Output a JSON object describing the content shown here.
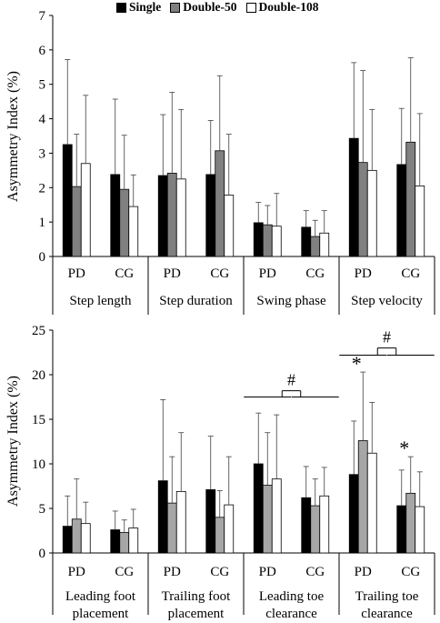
{
  "legend": {
    "series": [
      {
        "label": "Single",
        "color": "#000000"
      },
      {
        "label": "Double-50",
        "color": "#808080"
      },
      {
        "label": "Double-108",
        "color": "#ffffff"
      }
    ]
  },
  "chart_data": [
    {
      "type": "bar",
      "ylabel": "Asymmetry Index (%)",
      "ylim": [
        0,
        7
      ],
      "yticks": [
        0,
        1,
        2,
        3,
        4,
        5,
        6,
        7
      ],
      "error_bars": "upper only",
      "groups": [
        {
          "label": "Step length",
          "subgroups": [
            "PD",
            "CG"
          ]
        },
        {
          "label": "Step duration",
          "subgroups": [
            "PD",
            "CG"
          ]
        },
        {
          "label": "Swing phase",
          "subgroups": [
            "PD",
            "CG"
          ]
        },
        {
          "label": "Step velocity",
          "subgroups": [
            "PD",
            "CG"
          ]
        }
      ],
      "series": [
        {
          "name": "Single",
          "color": "#000000",
          "values": [
            3.25,
            2.38,
            2.35,
            2.38,
            0.98,
            0.85,
            3.43,
            2.67
          ],
          "err_upper": [
            5.72,
            4.57,
            4.12,
            3.95,
            1.57,
            1.33,
            5.63,
            4.3
          ]
        },
        {
          "name": "Double-50",
          "color": "#808080",
          "values": [
            2.03,
            1.95,
            2.42,
            3.07,
            0.92,
            0.58,
            2.73,
            3.32
          ],
          "err_upper": [
            3.55,
            3.52,
            4.77,
            5.25,
            1.48,
            1.05,
            5.4,
            5.77
          ]
        },
        {
          "name": "Double-108",
          "color": "#ffffff",
          "values": [
            2.7,
            1.45,
            2.25,
            1.78,
            0.88,
            0.68,
            2.5,
            2.05
          ],
          "err_upper": [
            4.68,
            2.37,
            4.27,
            3.55,
            1.83,
            1.33,
            4.27,
            4.15
          ]
        }
      ],
      "annotations": []
    },
    {
      "type": "bar",
      "ylabel": "Asymmetry Index (%)",
      "ylim": [
        0,
        25
      ],
      "yticks": [
        0,
        5,
        10,
        15,
        20,
        25
      ],
      "error_bars": "upper only",
      "groups": [
        {
          "label": "Leading foot placement",
          "subgroups": [
            "PD",
            "CG"
          ]
        },
        {
          "label": "Trailing foot placement",
          "subgroups": [
            "PD",
            "CG"
          ]
        },
        {
          "label": "Leading toe clearance",
          "subgroups": [
            "PD",
            "CG"
          ]
        },
        {
          "label": "Trailing toe clearance",
          "subgroups": [
            "PD",
            "CG"
          ]
        }
      ],
      "series": [
        {
          "name": "Single",
          "color": "#000000",
          "values": [
            3.0,
            2.6,
            8.1,
            7.1,
            10.0,
            6.2,
            8.8,
            5.3
          ],
          "err_upper": [
            6.4,
            4.7,
            17.2,
            13.1,
            15.7,
            9.7,
            14.8,
            9.3
          ]
        },
        {
          "name": "Double-50",
          "color": "#a6a6a6",
          "values": [
            3.8,
            2.3,
            5.6,
            4.0,
            7.6,
            5.3,
            12.6,
            6.7
          ],
          "err_upper": [
            8.3,
            3.7,
            10.8,
            7.0,
            13.5,
            8.3,
            20.3,
            10.8
          ]
        },
        {
          "name": "Double-108",
          "color": "#ffffff",
          "values": [
            3.3,
            2.8,
            6.9,
            5.4,
            8.3,
            6.4,
            11.2,
            5.2
          ],
          "err_upper": [
            5.7,
            4.9,
            13.5,
            10.8,
            15.5,
            9.6,
            16.9,
            9.1
          ]
        }
      ],
      "annotations": [
        {
          "symbol": "#",
          "group": "Leading toe clearance",
          "comparison": "PD vs CG"
        },
        {
          "symbol": "#",
          "group": "Trailing toe clearance",
          "comparison": "PD vs CG"
        },
        {
          "symbol": "*",
          "group": "Trailing toe clearance",
          "subgroup": "PD",
          "series": "Double-50"
        },
        {
          "symbol": "*",
          "group": "Trailing toe clearance",
          "subgroup": "CG",
          "series": "Double-50"
        }
      ]
    }
  ]
}
